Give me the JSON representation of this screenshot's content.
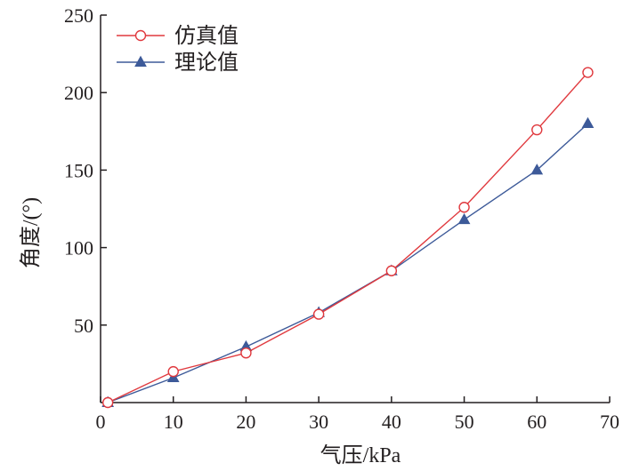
{
  "chart_data": {
    "type": "line",
    "title": "",
    "xlabel": "气压/kPa",
    "ylabel": "角度/(°)",
    "xlim": [
      0,
      70
    ],
    "ylim": [
      0,
      250
    ],
    "x_ticks": [
      0,
      10,
      20,
      30,
      40,
      50,
      60,
      70
    ],
    "y_ticks": [
      50,
      100,
      150,
      200,
      250
    ],
    "grid": false,
    "legend_position": "top-left",
    "series": [
      {
        "name": "仿真值",
        "marker": "open-circle",
        "color": "#e0393e",
        "x": [
          1,
          10,
          20,
          30,
          40,
          50,
          60,
          67
        ],
        "y": [
          0,
          20,
          32,
          57,
          85,
          126,
          176,
          213
        ]
      },
      {
        "name": "理论值",
        "marker": "filled-triangle",
        "color": "#3d5a99",
        "x": [
          1,
          10,
          20,
          30,
          40,
          50,
          60,
          67
        ],
        "y": [
          0,
          16,
          36,
          58,
          85,
          118,
          150,
          180
        ]
      }
    ]
  }
}
